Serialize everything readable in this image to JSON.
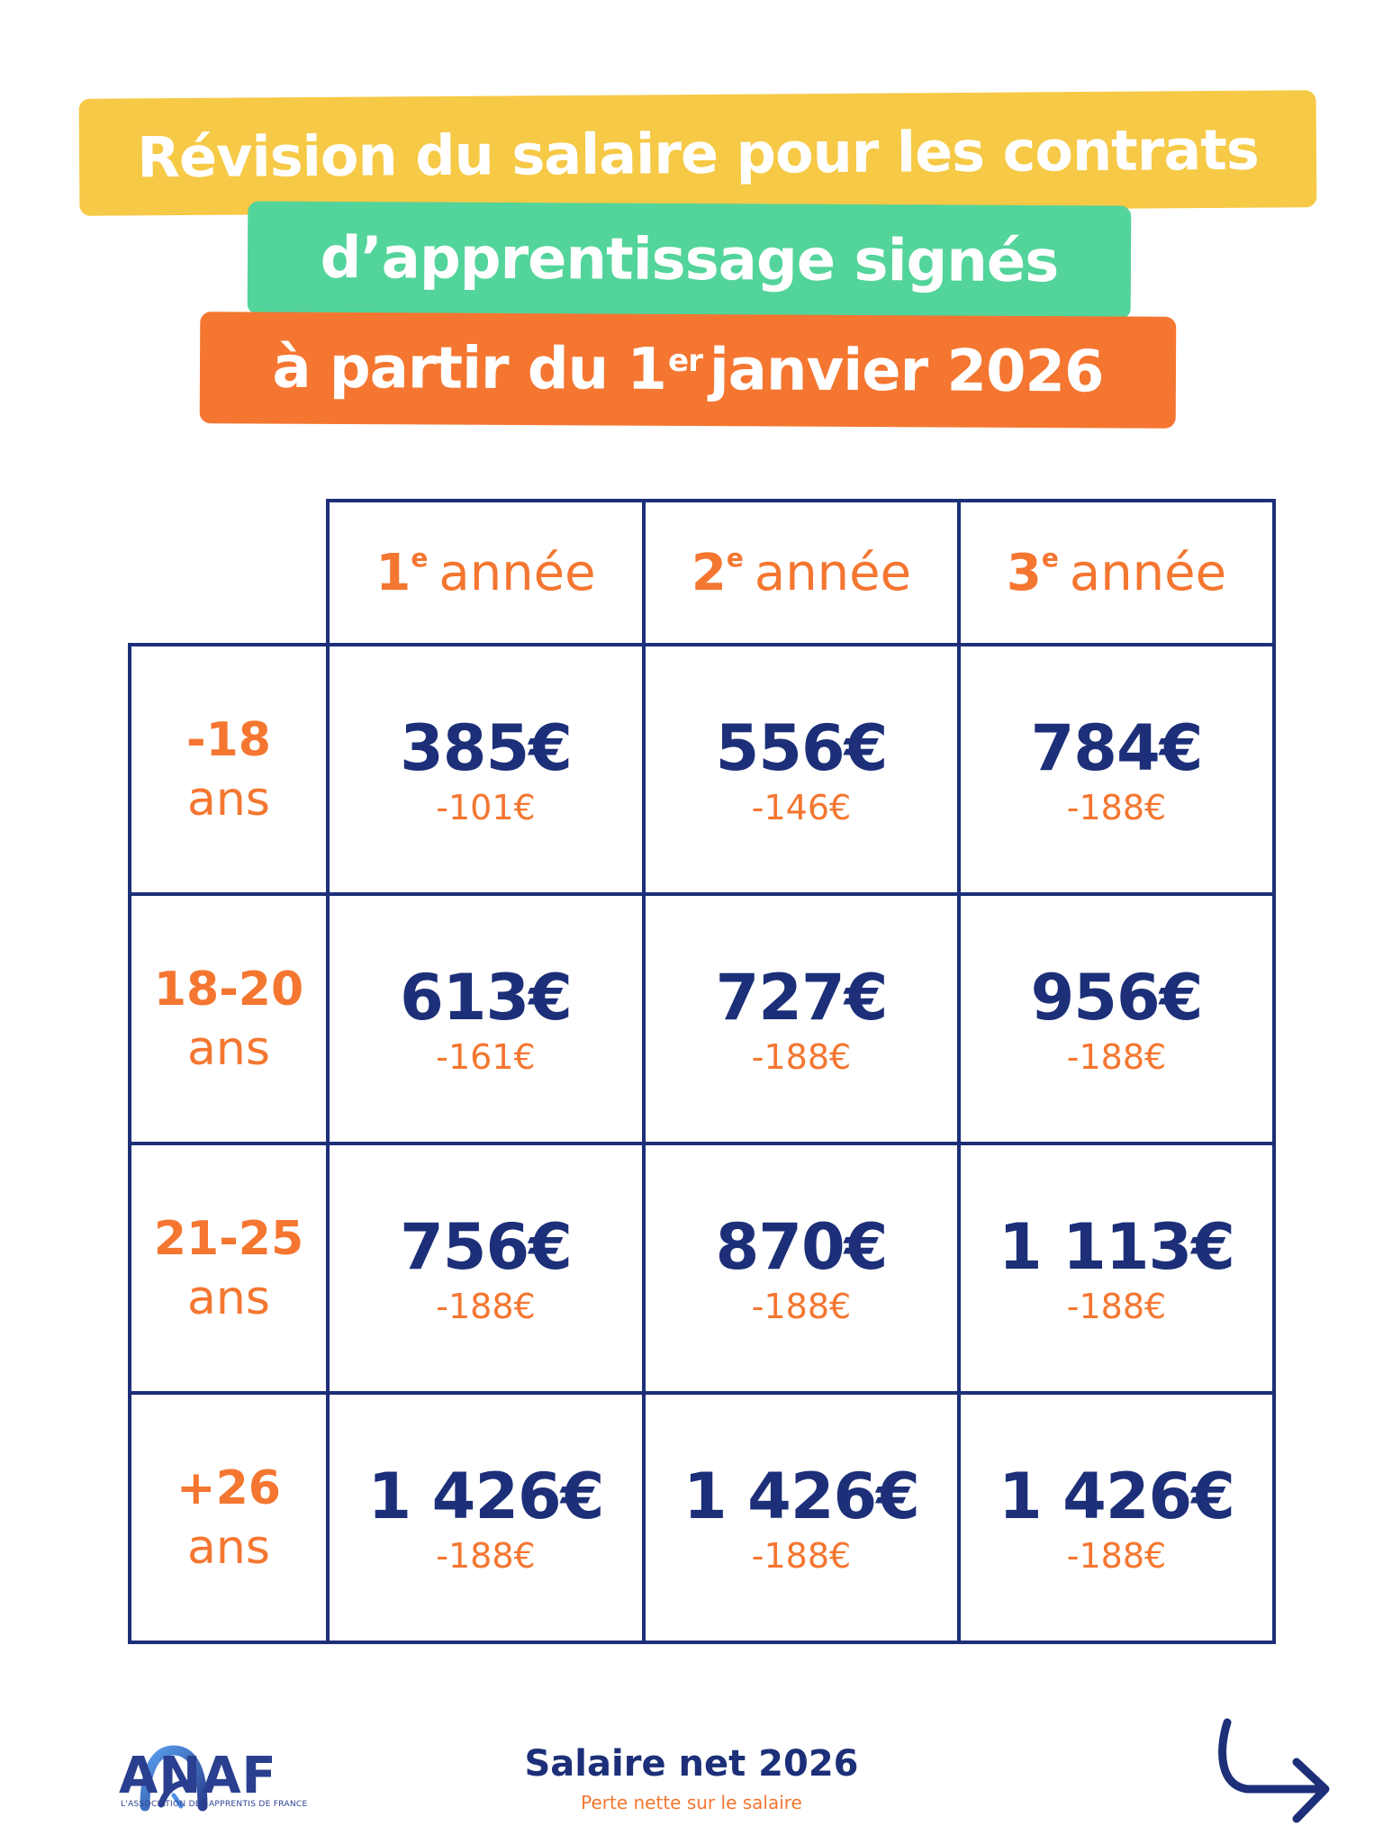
{
  "title": {
    "line1": "Révision du salaire pour les contrats",
    "line2": "d’apprentissage signés",
    "line3_before": "à partir du 1",
    "line3_sup": "er",
    "line3_after": "janvier 2026"
  },
  "table": {
    "columns": [
      {
        "num": "1",
        "sup": "e",
        "label": "année"
      },
      {
        "num": "2",
        "sup": "e",
        "label": "année"
      },
      {
        "num": "3",
        "sup": "e",
        "label": "année"
      }
    ],
    "rows": [
      {
        "age": "-18",
        "unit": "ans",
        "cells": [
          {
            "salary": "385€",
            "loss": "-101€"
          },
          {
            "salary": "556€",
            "loss": "-146€"
          },
          {
            "salary": "784€",
            "loss": "-188€"
          }
        ]
      },
      {
        "age": "18-20",
        "unit": "ans",
        "cells": [
          {
            "salary": "613€",
            "loss": "-161€"
          },
          {
            "salary": "727€",
            "loss": "-188€"
          },
          {
            "salary": "956€",
            "loss": "-188€"
          }
        ]
      },
      {
        "age": "21-25",
        "unit": "ans",
        "cells": [
          {
            "salary": "756€",
            "loss": "-188€"
          },
          {
            "salary": "870€",
            "loss": "-188€"
          },
          {
            "salary": "1 113€",
            "loss": "-188€"
          }
        ]
      },
      {
        "age": "+26",
        "unit": "ans",
        "cells": [
          {
            "salary": "1 426€",
            "loss": "-188€"
          },
          {
            "salary": "1 426€",
            "loss": "-188€"
          },
          {
            "salary": "1 426€",
            "loss": "-188€"
          }
        ]
      }
    ]
  },
  "logo": {
    "name": "ANAF",
    "tagline": "L'ASSOCIATION DES APPRENTIS DE FRANCE"
  },
  "footer": {
    "title": "Salaire net 2026",
    "subtitle": "Perte nette sur le salaire"
  },
  "colors": {
    "navy": "#1C2F78",
    "orange": "#F47630",
    "yellow": "#F6C946",
    "green": "#53D49A"
  },
  "icons": {
    "logo": "anaf-arch-icon",
    "next": "curved-arrow-right-icon"
  }
}
